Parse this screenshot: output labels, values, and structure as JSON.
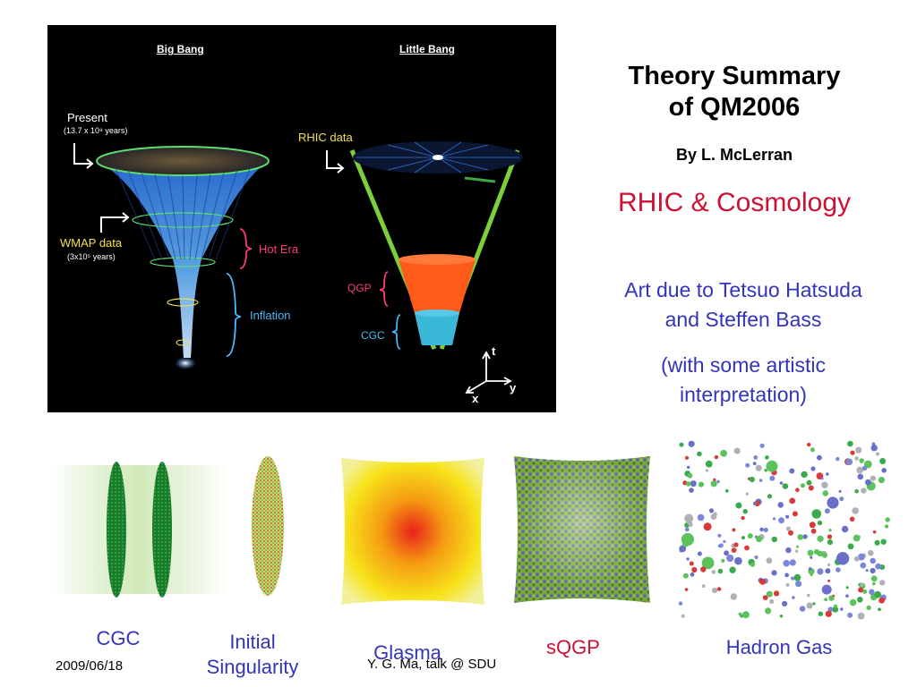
{
  "figure": {
    "big_bang_label": "Big Bang",
    "little_bang_label": "Little Bang",
    "present_label": "Present",
    "present_years": "(13.7 x 10⁹ years)",
    "wmap_label": "WMAP data",
    "wmap_years": "(3x10⁵ years)",
    "hot_era_label": "Hot Era",
    "inflation_label": "Inflation",
    "rhic_data_label": "RHIC data",
    "qgp_label": "QGP",
    "cgc_label": "CGC",
    "axis_t": "t",
    "axis_y": "y",
    "axis_x": "x"
  },
  "slide": {
    "title_line1": "Theory Summary",
    "title_line2": "of QM2006",
    "byline": "By L. McLerran",
    "subtitle": "RHIC & Cosmology",
    "credit_line1": "Art due to Tetsuo Hatsuda",
    "credit_line2": "and Steffen Bass",
    "note_line1": "(with some artistic",
    "note_line2": "interpretation)"
  },
  "stages": {
    "cgc": "CGC",
    "initial_line1": "Initial",
    "initial_line2": "Singularity",
    "glasma": "Glasma",
    "sqgp": "sQGP",
    "hadron_gas": "Hadron Gas"
  },
  "footer": {
    "date": "2009/06/18",
    "talk": "Y. G. Ma, talk @ SDU"
  },
  "colors": {
    "subtitle": "#cc1133",
    "credit": "#3333bb",
    "cgc_caption": "#3333bb",
    "initial_caption": "#3333bb",
    "glasma_caption": "#3333bb",
    "sqgp_caption": "#cc1133",
    "hadron_caption": "#3333bb"
  }
}
